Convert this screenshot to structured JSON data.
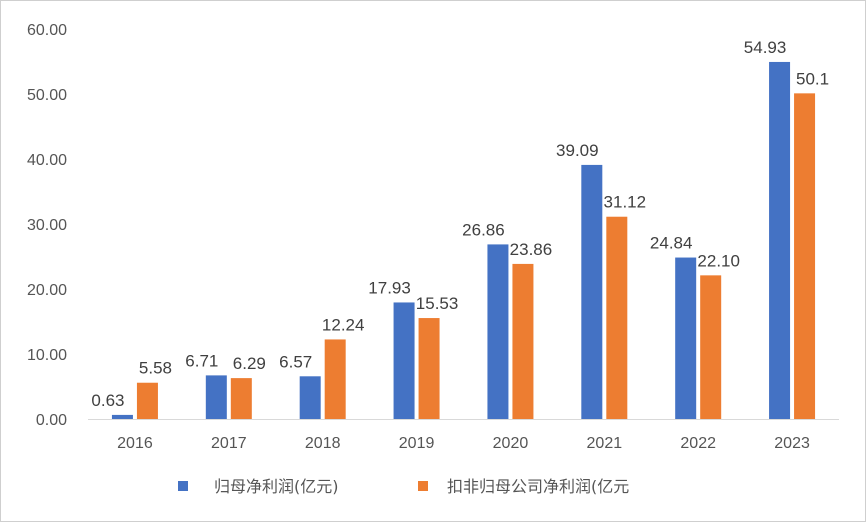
{
  "chart_data": {
    "type": "bar",
    "categories": [
      "2016",
      "2017",
      "2018",
      "2019",
      "2020",
      "2021",
      "2022",
      "2023"
    ],
    "series": [
      {
        "name": "归母净利润(亿元)",
        "values": [
          0.63,
          6.71,
          6.57,
          17.93,
          26.86,
          39.09,
          24.84,
          54.93
        ],
        "labels": [
          "0.63",
          "6.71",
          "6.57",
          "17.93",
          "26.86",
          "39.09",
          "24.84",
          "54.93"
        ],
        "color": "#4472C4"
      },
      {
        "name": "扣非归母公司净利润(亿元",
        "values": [
          5.58,
          6.29,
          12.24,
          15.53,
          23.86,
          31.12,
          22.1,
          50.1
        ],
        "labels": [
          "5.58",
          "6.29",
          "12.24",
          "15.53",
          "23.86",
          "31.12",
          "22.10",
          "50.1"
        ],
        "color": "#ED7D31"
      }
    ],
    "yticks": [
      "0.00",
      "10.00",
      "20.00",
      "30.00",
      "40.00",
      "50.00",
      "60.00"
    ],
    "ylim": [
      0,
      60
    ],
    "grid": false,
    "legend": "bottom",
    "axis_color": "#d9d9d9"
  }
}
